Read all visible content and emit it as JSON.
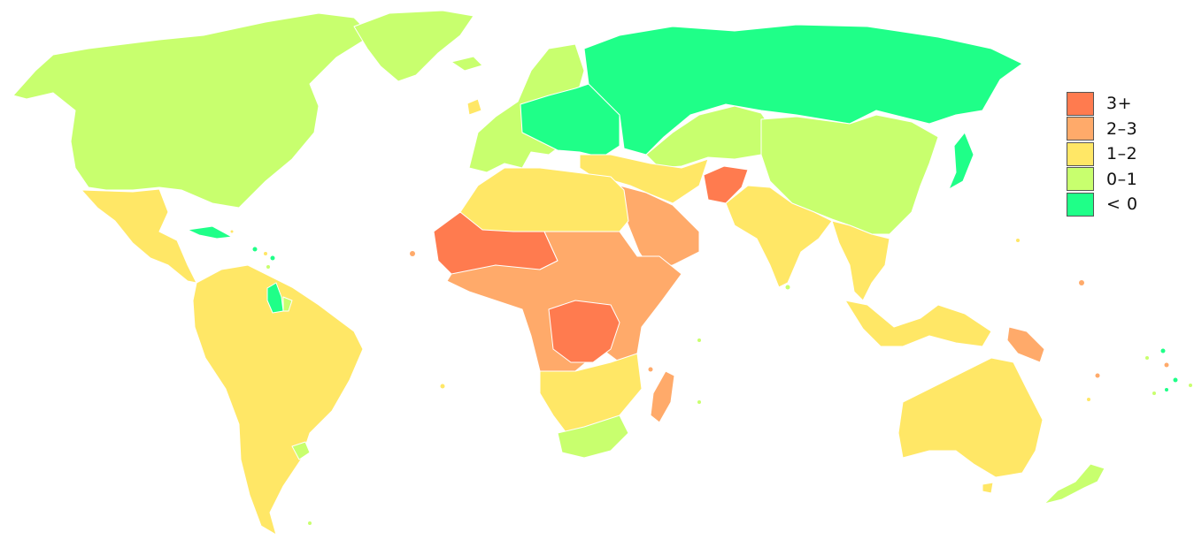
{
  "legend": {
    "items": [
      {
        "label": "3+",
        "color": "#ff7b4f"
      },
      {
        "label": "2–3",
        "color": "#ffaa6a"
      },
      {
        "label": "1–2",
        "color": "#ffe766"
      },
      {
        "label": "0–1",
        "color": "#c8ff6e"
      },
      {
        "label": "< 0",
        "color": "#1fff88"
      }
    ]
  },
  "regions": [
    {
      "name": "north-america",
      "class": "0–1"
    },
    {
      "name": "greenland",
      "class": "0–1"
    },
    {
      "name": "mexico-central-america",
      "class": "1–2"
    },
    {
      "name": "cuba",
      "class": "< 0"
    },
    {
      "name": "south-america",
      "class": "1–2"
    },
    {
      "name": "guyana-suriname",
      "class": "< 0"
    },
    {
      "name": "uruguay",
      "class": "0–1"
    },
    {
      "name": "western-europe",
      "class": "0–1"
    },
    {
      "name": "eastern-europe",
      "class": "< 0"
    },
    {
      "name": "russia",
      "class": "< 0"
    },
    {
      "name": "japan",
      "class": "< 0"
    },
    {
      "name": "china",
      "class": "0–1"
    },
    {
      "name": "central-asia",
      "class": "0–1"
    },
    {
      "name": "north-africa",
      "class": "1–2"
    },
    {
      "name": "sahel",
      "class": "3+"
    },
    {
      "name": "central-africa",
      "class": "3+"
    },
    {
      "name": "east-west-africa",
      "class": "2–3"
    },
    {
      "name": "southern-africa",
      "class": "1–2"
    },
    {
      "name": "south-africa",
      "class": "0–1"
    },
    {
      "name": "madagascar",
      "class": "2–3"
    },
    {
      "name": "arabia",
      "class": "2–3"
    },
    {
      "name": "afghanistan",
      "class": "3+"
    },
    {
      "name": "iran-middle-east",
      "class": "1–2"
    },
    {
      "name": "india",
      "class": "1–2"
    },
    {
      "name": "southeast-asia",
      "class": "1–2"
    },
    {
      "name": "indonesia",
      "class": "1–2"
    },
    {
      "name": "papua-new-guinea",
      "class": "2–3"
    },
    {
      "name": "australia",
      "class": "1–2"
    },
    {
      "name": "new-zealand",
      "class": "0–1"
    }
  ]
}
